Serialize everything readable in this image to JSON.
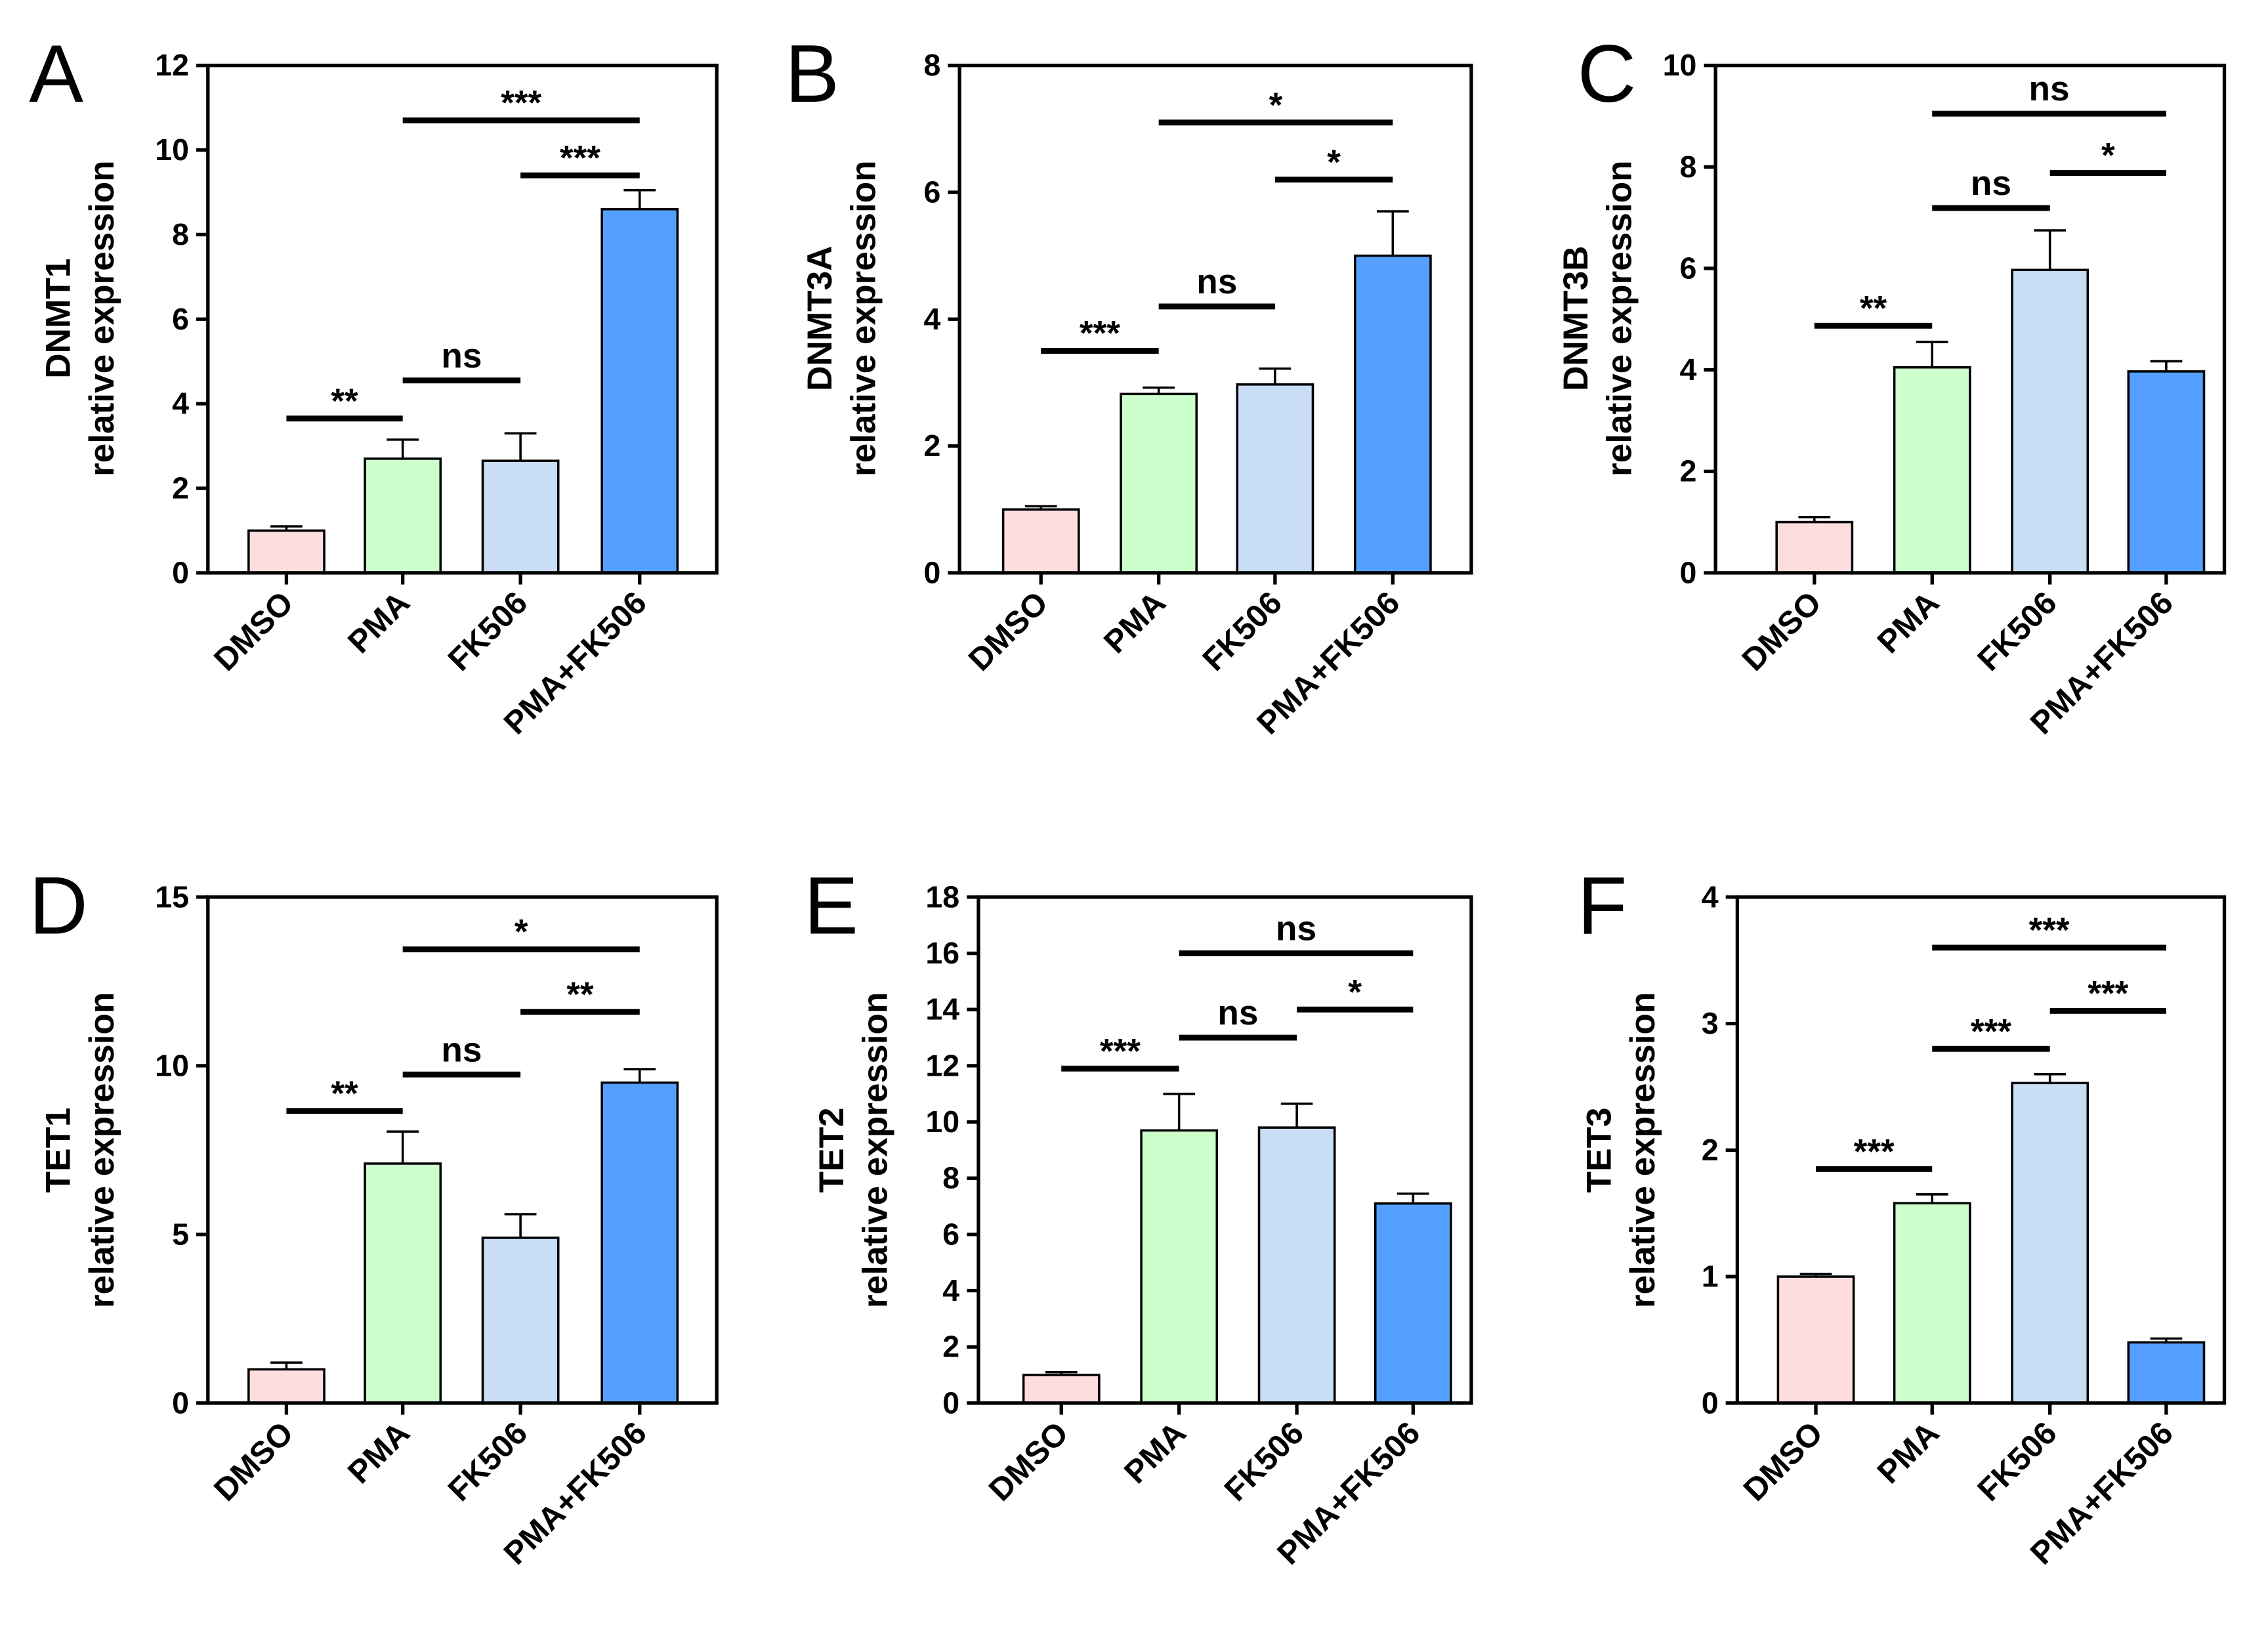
{
  "chart_data": [
    {
      "type": "bar",
      "panel": "A",
      "ylabel": [
        "DNMT1",
        "relative expression"
      ],
      "ylim": [
        0,
        12
      ],
      "yticks": [
        0,
        2,
        4,
        6,
        8,
        10,
        12
      ],
      "categories": [
        "DMSO",
        "PMA",
        "FK506",
        "PMA+FK506"
      ],
      "values": [
        1.0,
        2.7,
        2.65,
        8.6
      ],
      "errors": [
        0.1,
        0.45,
        0.65,
        0.45
      ],
      "significance": [
        {
          "from": 0,
          "to": 1,
          "label": "**",
          "y": 3.65
        },
        {
          "from": 1,
          "to": 2,
          "label": "ns",
          "y": 4.55
        },
        {
          "from": 1,
          "to": 3,
          "label": "***",
          "y": 10.7
        },
        {
          "from": 2,
          "to": 3,
          "label": "***",
          "y": 9.4
        }
      ]
    },
    {
      "type": "bar",
      "panel": "B",
      "ylabel": [
        "DNMT3A",
        "relative expression"
      ],
      "ylim": [
        0,
        8
      ],
      "yticks": [
        0,
        2,
        4,
        6,
        8
      ],
      "categories": [
        "DMSO",
        "PMA",
        "FK506",
        "PMA+FK506"
      ],
      "values": [
        1.0,
        2.82,
        2.97,
        5.0
      ],
      "errors": [
        0.05,
        0.1,
        0.25,
        0.7
      ],
      "significance": [
        {
          "from": 0,
          "to": 1,
          "label": "***",
          "y": 3.5
        },
        {
          "from": 1,
          "to": 2,
          "label": "ns",
          "y": 4.2
        },
        {
          "from": 1,
          "to": 3,
          "label": "*",
          "y": 7.1
        },
        {
          "from": 2,
          "to": 3,
          "label": "*",
          "y": 6.2
        }
      ]
    },
    {
      "type": "bar",
      "panel": "C",
      "ylabel": [
        "DNMT3B",
        "relative expression"
      ],
      "ylim": [
        0,
        10
      ],
      "yticks": [
        0,
        2,
        4,
        6,
        8,
        10
      ],
      "categories": [
        "DMSO",
        "PMA",
        "FK506",
        "PMA+FK506"
      ],
      "values": [
        1.0,
        4.05,
        5.97,
        3.97
      ],
      "errors": [
        0.1,
        0.5,
        0.78,
        0.2
      ],
      "significance": [
        {
          "from": 0,
          "to": 1,
          "label": "**",
          "y": 4.87
        },
        {
          "from": 1,
          "to": 2,
          "label": "ns",
          "y": 7.19
        },
        {
          "from": 1,
          "to": 3,
          "label": "ns",
          "y": 9.05
        },
        {
          "from": 2,
          "to": 3,
          "label": "*",
          "y": 7.88
        }
      ]
    },
    {
      "type": "bar",
      "panel": "D",
      "ylabel": [
        "TET1",
        "relative expression"
      ],
      "ylim": [
        0,
        15
      ],
      "yticks": [
        0,
        5,
        10,
        15
      ],
      "categories": [
        "DMSO",
        "PMA",
        "FK506",
        "PMA+FK506"
      ],
      "values": [
        1.0,
        7.1,
        4.9,
        9.5
      ],
      "errors": [
        0.2,
        0.95,
        0.7,
        0.4
      ],
      "significance": [
        {
          "from": 0,
          "to": 1,
          "label": "**",
          "y": 8.66
        },
        {
          "from": 1,
          "to": 2,
          "label": "ns",
          "y": 9.74
        },
        {
          "from": 1,
          "to": 3,
          "label": "*",
          "y": 13.45
        },
        {
          "from": 2,
          "to": 3,
          "label": "**",
          "y": 11.6
        }
      ]
    },
    {
      "type": "bar",
      "panel": "E",
      "ylabel": [
        "TET2",
        "relative expression"
      ],
      "ylim": [
        0,
        18
      ],
      "yticks": [
        0,
        2,
        4,
        6,
        8,
        10,
        12,
        14,
        16,
        18
      ],
      "categories": [
        "DMSO",
        "PMA",
        "FK506",
        "PMA+FK506"
      ],
      "values": [
        1.0,
        9.7,
        9.8,
        7.1
      ],
      "errors": [
        0.1,
        1.3,
        0.85,
        0.35
      ],
      "significance": [
        {
          "from": 0,
          "to": 1,
          "label": "***",
          "y": 11.9
        },
        {
          "from": 1,
          "to": 2,
          "label": "ns",
          "y": 13.0
        },
        {
          "from": 1,
          "to": 3,
          "label": "ns",
          "y": 16.0
        },
        {
          "from": 2,
          "to": 3,
          "label": "*",
          "y": 14.0
        }
      ]
    },
    {
      "type": "bar",
      "panel": "F",
      "ylabel": [
        "TET3",
        "relative expression"
      ],
      "ylim": [
        0,
        4
      ],
      "yticks": [
        0,
        1,
        2,
        3,
        4
      ],
      "categories": [
        "DMSO",
        "PMA",
        "FK506",
        "PMA+FK506"
      ],
      "values": [
        1.0,
        1.58,
        2.53,
        0.48
      ],
      "errors": [
        0.02,
        0.07,
        0.07,
        0.03
      ],
      "significance": [
        {
          "from": 0,
          "to": 1,
          "label": "***",
          "y": 1.85
        },
        {
          "from": 1,
          "to": 2,
          "label": "***",
          "y": 2.8
        },
        {
          "from": 1,
          "to": 3,
          "label": "***",
          "y": 3.6
        },
        {
          "from": 2,
          "to": 3,
          "label": "***",
          "y": 3.1
        }
      ]
    }
  ],
  "colors": [
    "#FDDDDD",
    "#CCFFCC",
    "#C9DDF5",
    "#55A0FF"
  ]
}
